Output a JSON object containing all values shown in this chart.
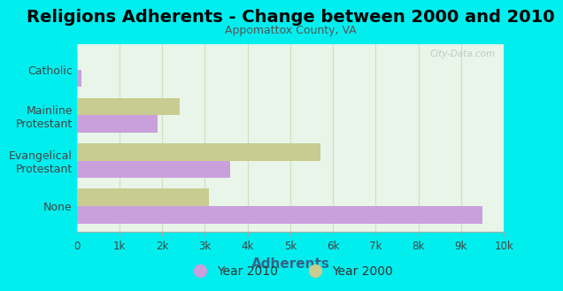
{
  "title": "Religions Adherents - Change between 2000 and 2010",
  "subtitle": "Appomattox County, VA",
  "xlabel": "Adherents",
  "categories": [
    "Catholic",
    "Mainline\nProtestant",
    "Evangelical\nProtestant",
    "None"
  ],
  "year2010": [
    100,
    1900,
    3600,
    9500
  ],
  "year2000": [
    30,
    2400,
    5700,
    3100
  ],
  "color_2010": "#c9a0dc",
  "color_2000": "#c8cc90",
  "bg_color": "#00eeee",
  "plot_bg_color": "#e8f5e8",
  "grid_color": "#d0dfc0",
  "xlim": [
    0,
    10000
  ],
  "xticks": [
    0,
    1000,
    2000,
    3000,
    4000,
    5000,
    6000,
    7000,
    8000,
    9000,
    10000
  ],
  "xticklabels": [
    "0",
    "1k",
    "2k",
    "3k",
    "4k",
    "5k",
    "6k",
    "7k",
    "8k",
    "9k",
    "10k"
  ],
  "legend_label_2010": "Year 2010",
  "legend_label_2000": "Year 2000",
  "title_fontsize": 14,
  "subtitle_fontsize": 9,
  "xlabel_fontsize": 11,
  "ylabel_fontsize": 9,
  "bar_height": 0.38,
  "watermark": "City-Data.com",
  "xlabel_color": "#336688",
  "tick_label_color": "#444444",
  "ylabel_color": "#444444"
}
